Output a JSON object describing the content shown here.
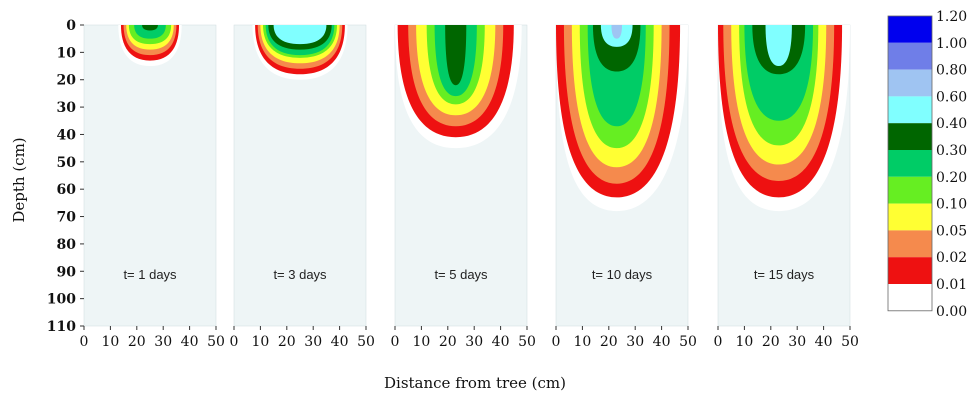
{
  "chart_data": {
    "type": "heatmap",
    "title": "",
    "xlabel": "Distance from tree (cm)",
    "ylabel": "Depth (cm)",
    "xlim": [
      0,
      50
    ],
    "ylim": [
      110,
      0
    ],
    "x_ticks": [
      "0",
      "10",
      "20",
      "30",
      "40",
      "50"
    ],
    "y_ticks": [
      "0",
      "10",
      "20",
      "30",
      "40",
      "50",
      "60",
      "70",
      "80",
      "90",
      "100",
      "110"
    ],
    "colorbar": {
      "ticks": [
        "1.20",
        "1.00",
        "0.80",
        "0.60",
        "0.40",
        "0.30",
        "0.20",
        "0.10",
        "0.05",
        "0.02",
        "0.01",
        "0.00"
      ],
      "colors": [
        "#0000ee",
        "#6f7ee8",
        "#9fc4f2",
        "#80ffff",
        "#006600",
        "#00cc66",
        "#66ee22",
        "#ffff33",
        "#f58a4d",
        "#ee1111",
        "#ffffff"
      ]
    },
    "panels": [
      {
        "label": "t= 1 days",
        "center_x": 25,
        "max_depth": 15,
        "levels": [
          {
            "c": "0.01",
            "w": 12,
            "d": 15
          },
          {
            "c": "0.02",
            "w": 11,
            "d": 13
          },
          {
            "c": "0.05",
            "w": 10,
            "d": 11
          },
          {
            "c": "0.10",
            "w": 9,
            "d": 9
          },
          {
            "c": "0.20",
            "w": 8,
            "d": 7
          },
          {
            "c": "0.30",
            "w": 6,
            "d": 5
          },
          {
            "c": "0.40",
            "w": 3,
            "d": 2
          }
        ]
      },
      {
        "label": "t= 3 days",
        "center_x": 25,
        "max_depth": 20,
        "levels": [
          {
            "c": "0.01",
            "w": 18,
            "d": 20
          },
          {
            "c": "0.02",
            "w": 17,
            "d": 18
          },
          {
            "c": "0.05",
            "w": 16,
            "d": 16
          },
          {
            "c": "0.10",
            "w": 15,
            "d": 14
          },
          {
            "c": "0.20",
            "w": 14,
            "d": 12
          },
          {
            "c": "0.30",
            "w": 13,
            "d": 11
          },
          {
            "c": "0.40",
            "w": 12,
            "d": 9
          },
          {
            "c": "0.60",
            "w": 10,
            "d": 7
          }
        ]
      },
      {
        "label": "t= 5 days",
        "center_x": 23,
        "max_depth": 45,
        "levels": [
          {
            "c": "0.01",
            "w": 25,
            "d": 45
          },
          {
            "c": "0.02",
            "w": 22,
            "d": 41
          },
          {
            "c": "0.05",
            "w": 18,
            "d": 37
          },
          {
            "c": "0.10",
            "w": 15,
            "d": 33
          },
          {
            "c": "0.20",
            "w": 11,
            "d": 29
          },
          {
            "c": "0.30",
            "w": 8,
            "d": 26
          },
          {
            "c": "0.40",
            "w": 4,
            "d": 22
          }
        ]
      },
      {
        "label": "t= 10 days",
        "center_x": 23,
        "max_depth": 68,
        "levels": [
          {
            "c": "0.01",
            "w": 27,
            "d": 68
          },
          {
            "c": "0.02",
            "w": 24,
            "d": 63
          },
          {
            "c": "0.05",
            "w": 20,
            "d": 58
          },
          {
            "c": "0.10",
            "w": 17,
            "d": 52
          },
          {
            "c": "0.20",
            "w": 14,
            "d": 45
          },
          {
            "c": "0.30",
            "w": 11,
            "d": 37
          },
          {
            "c": "0.40",
            "w": 9,
            "d": 17
          },
          {
            "c": "0.60",
            "w": 6,
            "d": 8
          },
          {
            "c": "0.80",
            "w": 2,
            "d": 5
          }
        ]
      },
      {
        "label": "t= 15 days",
        "center_x": 23,
        "max_depth": 68,
        "levels": [
          {
            "c": "0.01",
            "w": 28,
            "d": 68
          },
          {
            "c": "0.02",
            "w": 24,
            "d": 63
          },
          {
            "c": "0.05",
            "w": 21,
            "d": 57
          },
          {
            "c": "0.10",
            "w": 18,
            "d": 51
          },
          {
            "c": "0.20",
            "w": 15,
            "d": 44
          },
          {
            "c": "0.30",
            "w": 13,
            "d": 35
          },
          {
            "c": "0.40",
            "w": 10,
            "d": 18
          },
          {
            "c": "0.60",
            "w": 5,
            "d": 15
          }
        ]
      }
    ]
  }
}
